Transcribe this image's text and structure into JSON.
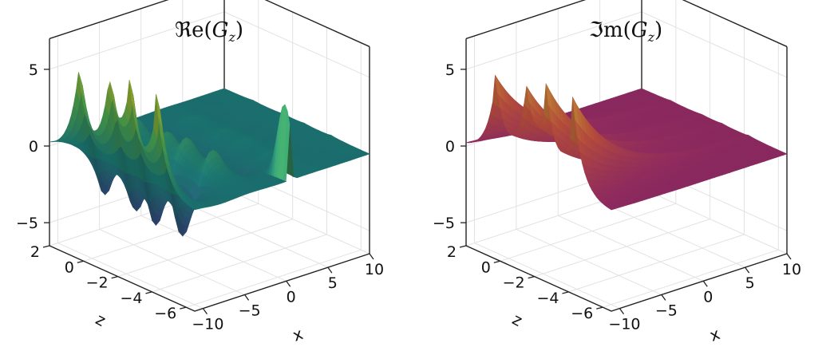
{
  "chart_data": [
    {
      "type": "surface",
      "title": "ℜRe(G_z)",
      "title_parts": {
        "op": "ℜe",
        "sym": "G",
        "sub": "z"
      },
      "xlabel": "x",
      "zlabel": "z",
      "xlim": [
        -11,
        10
      ],
      "zlim": [
        -6.5,
        2
      ],
      "vlim": [
        -6.5,
        7
      ],
      "x_ticks": [
        "−10",
        "−5",
        "0",
        "5",
        "10"
      ],
      "x_tick_values": [
        -10,
        -5,
        0,
        5,
        10
      ],
      "z_ticks": [
        "2",
        "0",
        "−2",
        "−4",
        "−6"
      ],
      "z_tick_values": [
        2,
        0,
        -2,
        -4,
        -6
      ],
      "v_ticks": [
        "5",
        "0",
        "−5"
      ],
      "v_tick_values": [
        5,
        0,
        -5
      ],
      "colormap": "viridis",
      "colors": [
        "#440154",
        "#3b528b",
        "#21918c",
        "#5ec962",
        "#fde725"
      ],
      "component": "real",
      "grid": true
    },
    {
      "type": "surface",
      "title": "ℑm(G_z)",
      "title_parts": {
        "op": "ℑm",
        "sym": "G",
        "sub": "z"
      },
      "xlabel": "x",
      "zlabel": "z",
      "xlim": [
        -11,
        10
      ],
      "zlim": [
        -6.5,
        2
      ],
      "vlim": [
        -6.5,
        7
      ],
      "x_ticks": [
        "−10",
        "−5",
        "0",
        "5",
        "10"
      ],
      "x_tick_values": [
        -10,
        -5,
        0,
        5,
        10
      ],
      "z_ticks": [
        "2",
        "0",
        "−2",
        "−4",
        "−6"
      ],
      "z_tick_values": [
        2,
        0,
        -2,
        -4,
        -6
      ],
      "v_ticks": [
        "5",
        "0",
        "−5"
      ],
      "v_tick_values": [
        5,
        0,
        -5
      ],
      "colormap": "magma",
      "colors": [
        "#1a1042",
        "#51127c",
        "#b73779",
        "#e8624b",
        "#f8c442"
      ],
      "component": "imag",
      "grid": true
    }
  ]
}
